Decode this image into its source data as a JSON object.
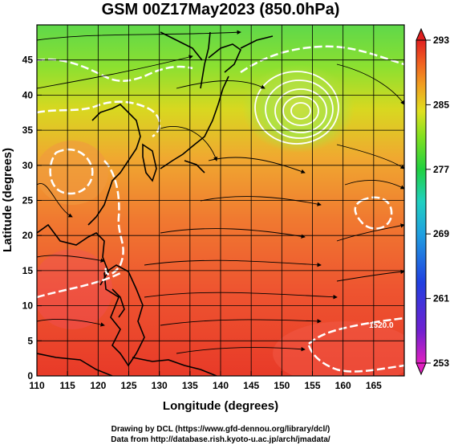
{
  "title": "GSM 00Z17May2023 (850.0hPa)",
  "map": {
    "xlabel": "Longitude (degrees)",
    "ylabel": "Latitude (degrees)",
    "lon_range": [
      110,
      170
    ],
    "lat_range": [
      0,
      50
    ],
    "lon_ticks": [
      "110",
      "115",
      "120",
      "125",
      "130",
      "135",
      "140",
      "145",
      "150",
      "155",
      "160",
      "165"
    ],
    "lat_ticks": [
      "0",
      "5",
      "10",
      "15",
      "20",
      "25",
      "30",
      "35",
      "40",
      "45"
    ],
    "grid": true,
    "contour_label": "1520.0"
  },
  "colorbar": {
    "ticks": [
      "293",
      "285",
      "277",
      "269",
      "261",
      "253"
    ],
    "range": [
      253,
      293
    ],
    "colors": [
      "#e020c0",
      "#7020d0",
      "#2040e0",
      "#20a0e0",
      "#20d0c0",
      "#20d040",
      "#80e020",
      "#e0e020",
      "#f0a020",
      "#f06020",
      "#e02020"
    ]
  },
  "credits": {
    "line1": "Drawing by DCL (https://www.gfd-dennou.org/library/dcl/)",
    "line2": "Data from http://database.rish.kyoto-u.ac.jp/arch/jmadata/"
  }
}
